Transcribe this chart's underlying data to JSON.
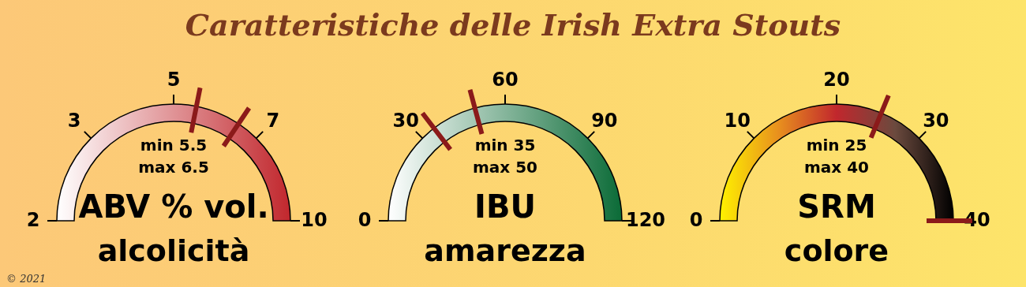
{
  "chart_data": [
    {
      "type": "other",
      "title": "Caratteristiche delle Irish Extra Stouts",
      "annotations": [
        "© 2021"
      ]
    },
    {
      "type": "other",
      "title": "ABV % vol.",
      "subtitle": "alcolicità",
      "annotations": [
        "2",
        "3",
        "5",
        "7",
        "10"
      ],
      "values": [
        5.5,
        6.5
      ],
      "value_labels": [
        "min 5.5",
        "max 6.5"
      ],
      "colors": [
        "#8b1a1a",
        "#8b1a1a"
      ]
    },
    {
      "type": "other",
      "title": "IBU",
      "subtitle": "amarezza",
      "annotations": [
        "0",
        "30",
        "60",
        "90",
        "120"
      ],
      "values": [
        35,
        50
      ],
      "value_labels": [
        "min 35",
        "max 50"
      ],
      "colors": [
        "#8b1a1a",
        "#8b1a1a"
      ]
    },
    {
      "type": "other",
      "title": "SRM",
      "subtitle": "colore",
      "annotations": [
        "0",
        "10",
        "20",
        "30",
        "40"
      ],
      "values": [
        25,
        40
      ],
      "value_labels": [
        "min 25",
        "max 40"
      ],
      "colors": [
        "#8b1a1a",
        "#8b1a1a"
      ]
    }
  ]
}
